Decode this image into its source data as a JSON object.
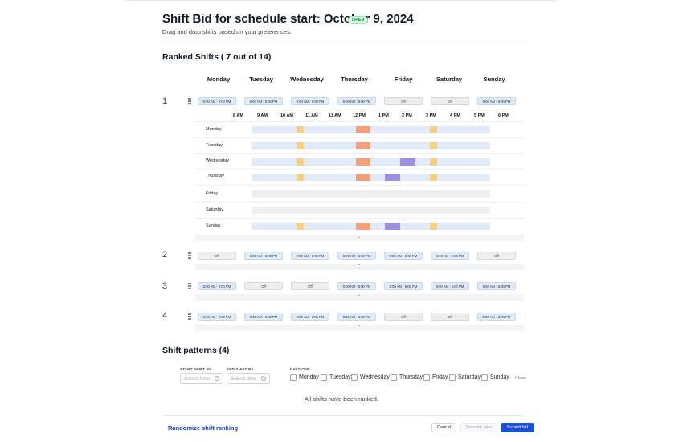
{
  "header": {
    "title": "Shift Bid for schedule start: October 9, 2024",
    "status_badge": "OPEN",
    "subtitle": "Drag and drop shifts based on your preferences."
  },
  "ranked": {
    "title": "Ranked Shifts ( 7 out of 14)",
    "days": [
      "Monday",
      "Tuesday",
      "Wednesday",
      "Thursday",
      "Friday",
      "Saturday",
      "Sunday"
    ],
    "rows": [
      {
        "rank": "1",
        "shifts": [
          "9:00 AM - 6:00 PM",
          "9:00 AM - 6:00 PM",
          "9:00 AM - 6:00 PM",
          "9:00 AM - 6:00 PM",
          "Off",
          "Off",
          "9:00 AM - 6:00 PM"
        ]
      },
      {
        "rank": "2",
        "shifts": [
          "Off",
          "9:00 AM - 6:00 PM",
          "9:00 AM - 6:00 PM",
          "9:00 AM - 6:00 PM",
          "9:00 AM - 6:00 PM",
          "9:00 AM - 6:00 PM",
          "Off"
        ]
      },
      {
        "rank": "3",
        "shifts": [
          "8:00 AM - 5:00 PM",
          "Off",
          "Off",
          "8:00 AM - 5:00 PM",
          "8:00 AM - 5:00 PM",
          "8:00 AM - 5:00 PM",
          "8:00 AM - 5:00 PM"
        ]
      },
      {
        "rank": "4",
        "shifts": [
          "9:00 AM - 6:00 PM",
          "9:00 AM - 6:00 PM",
          "9:00 AM - 6:00 PM",
          "9:00 AM - 6:00 PM",
          "Off",
          "Off",
          "9:00 AM - 6:00 PM"
        ]
      }
    ],
    "detail": {
      "hours": [
        "8 AM",
        "9 AM",
        "10 AM",
        "11 AM",
        "11 AM",
        "12 PM",
        "1 PM",
        "2 PM",
        "3 PM",
        "4 PM",
        "5 PM",
        "6 PM"
      ],
      "days": [
        "Monday",
        "Tuesday",
        "Wednesday",
        "Thursday",
        "Friday",
        "Saturday",
        "Sunday"
      ],
      "day_off": [
        false,
        false,
        false,
        false,
        true,
        true,
        false
      ],
      "purple_break": [
        false,
        false,
        true,
        true,
        false,
        false,
        true
      ],
      "colors": {
        "work": "#e0ebf7",
        "off": "#efefef",
        "yellow": "#f5cf86",
        "orange": "#f2a07b",
        "purple": "#9c8fdf"
      }
    }
  },
  "patterns": {
    "title": "Shift patterns (4)",
    "start_label": "START SHIFT BY",
    "end_label": "END SHIFT BY",
    "start_placeholder": "Select time",
    "end_placeholder": "Select time",
    "days_off_label": "DAYS OFF:",
    "days_off": [
      "Monday",
      "Tuesday",
      "Wednesday",
      "Thursday",
      "Friday",
      "Saturday",
      "Sunday"
    ],
    "clear_label": "Clear",
    "empty_message": "All shifts have been ranked."
  },
  "footer": {
    "randomize_label": "Randomize shift ranking",
    "cancel_label": "Cancel",
    "save_label": "Save for later",
    "submit_label": "Submit bid",
    "accent_color": "#1d4ed8"
  }
}
